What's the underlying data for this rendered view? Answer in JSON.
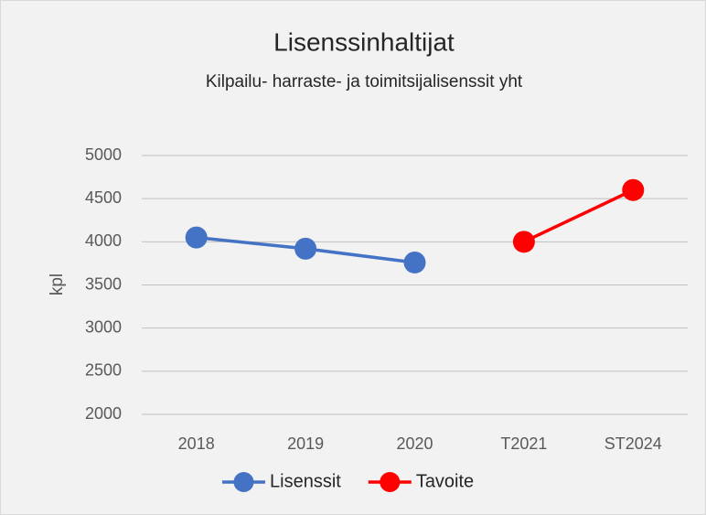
{
  "chart_data": {
    "type": "line",
    "title": "Lisenssinhaltijat",
    "subtitle": "Kilpailu- harraste- ja toimitsijalisenssit yht",
    "y_label": "kpl",
    "categories": [
      "2018",
      "2019",
      "2020",
      "T2021",
      "ST2024"
    ],
    "series": [
      {
        "name": "Lisenssit",
        "color": "#4472c4",
        "values": [
          4050,
          3920,
          3760,
          null,
          null
        ]
      },
      {
        "name": "Tavoite",
        "color": "#ff0000",
        "values": [
          null,
          null,
          null,
          4000,
          4600
        ]
      }
    ],
    "ylim": [
      2000,
      5000
    ],
    "yticks": [
      2000,
      2500,
      3000,
      3500,
      4000,
      4500,
      5000
    ],
    "grid": true,
    "legend": "bottom"
  }
}
